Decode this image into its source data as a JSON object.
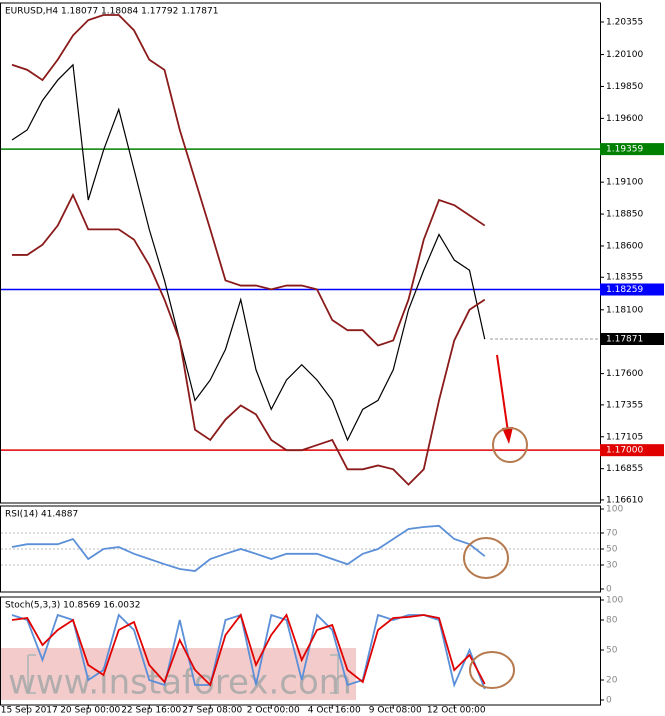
{
  "chart_data": [
    {
      "type": "line",
      "title": "EURUSD,H4  1.18077 1.18084 1.17792 1.17871",
      "categories": [
        null,
        "15 Sep 2017",
        null,
        null,
        null,
        "20 Sep 00:00",
        null,
        null,
        null,
        "22 Sep 16:00",
        null,
        null,
        null,
        "27 Sep 08:00",
        null,
        null,
        null,
        "2 Oct 00:00",
        null,
        null,
        null,
        "4 Oct 16:00",
        null,
        null,
        null,
        "9 Oct 08:00",
        null,
        null,
        null,
        "12 Oct 00:00",
        null,
        null
      ],
      "series": [
        {
          "color": "#000000",
          "values": [
            1.1943,
            1.1951,
            1.1974,
            1.199,
            1.2002,
            1.1896,
            1.1935,
            1.1967,
            1.192,
            1.1873,
            1.1833,
            1.1786,
            1.1739,
            1.1755,
            1.1779,
            1.1818,
            1.1763,
            1.1732,
            1.1755,
            1.1767,
            1.1755,
            1.1739,
            1.1708,
            1.1732,
            1.1739,
            1.1763,
            1.181,
            1.1841,
            1.1869,
            1.1849,
            1.1841,
            1.1787
          ]
        },
        {
          "color": "#8b1a1a",
          "values": [
            1.2002,
            1.1998,
            1.199,
            1.2006,
            1.2025,
            1.2037,
            1.2041,
            1.2041,
            1.2029,
            1.2006,
            1.1998,
            1.1951,
            1.1912,
            1.1873,
            1.1833,
            1.1829,
            1.1829,
            1.1826,
            1.1829,
            1.1829,
            1.1826,
            1.1802,
            1.1794,
            1.1794,
            1.1782,
            1.1786,
            1.1818,
            1.1865,
            1.1896,
            1.1892,
            1.1884,
            1.1876
          ]
        },
        {
          "color": "#8b1a1a",
          "values": [
            1.1853,
            1.1853,
            1.1861,
            1.1876,
            1.19,
            1.1873,
            1.1873,
            1.1873,
            1.1865,
            1.1845,
            1.1818,
            1.1786,
            1.1716,
            1.1708,
            1.1724,
            1.1735,
            1.1728,
            1.1708,
            1.17,
            1.17,
            1.1704,
            1.1708,
            1.1685,
            1.1685,
            1.1688,
            1.1685,
            1.1673,
            1.1685,
            1.1739,
            1.1786,
            1.181,
            1.1818
          ]
        }
      ],
      "ylim": [
        1.16586,
        1.20504
      ],
      "yticks": [
        1.20355,
        {
          "value": 1.201,
          "label": "1.20100"
        },
        {
          "value": 1.1985,
          "label": "1.19850"
        },
        {
          "value": 1.196,
          "label": "1.19600"
        },
        1.19355,
        {
          "value": 1.191,
          "label": "1.19100"
        },
        {
          "value": 1.1885,
          "label": "1.18850"
        },
        {
          "value": 1.186,
          "label": "1.18600"
        },
        1.18355,
        {
          "value": 1.181,
          "label": "1.18100"
        },
        {
          "value": 1.1785,
          "label": "1.17850"
        },
        {
          "value": 1.176,
          "label": "1.17600"
        },
        1.17355,
        1.17105,
        1.16855,
        {
          "value": 1.1661,
          "label": "1.16610"
        }
      ],
      "hlines": [
        {
          "value": 1.19359,
          "label": "1.19359",
          "color": "#008000"
        },
        {
          "value": 1.18259,
          "label": "1.18259",
          "color": "#0000ff"
        },
        {
          "value": 1.17,
          "label": "1.17000",
          "color": "#e00000"
        }
      ],
      "price": {
        "value": 1.17871,
        "label": "1.17871",
        "color": "#000000"
      }
    },
    {
      "type": "line",
      "title": "RSI(14) 41.4887",
      "series": [
        {
          "color": "#5b8fd8",
          "values": [
            52.5,
            56,
            56,
            56,
            62.5,
            37.5,
            50,
            52.5,
            44,
            37.5,
            31,
            25,
            22.5,
            37.5,
            44,
            50,
            44,
            37.5,
            44,
            44,
            44,
            37.5,
            31,
            44,
            50,
            62.5,
            75,
            77.5,
            79,
            62.5,
            56,
            41
          ]
        }
      ],
      "ylim": [
        -3.75,
        103.75
      ],
      "yticks": [
        100,
        70,
        50,
        30,
        0
      ]
    },
    {
      "type": "line",
      "title": "Stoch(5,3,3) 10.8569 16.0032",
      "series": [
        {
          "color": "#5b8fd8",
          "values": [
            85,
            80,
            40,
            85,
            80,
            20,
            30,
            85,
            70,
            20,
            15,
            80,
            15,
            15,
            80,
            85,
            15,
            85,
            80,
            20,
            85,
            70,
            15,
            20,
            85,
            80,
            85,
            85,
            80,
            15,
            50,
            11
          ]
        },
        {
          "color": "#e00000",
          "values": [
            80,
            82,
            55,
            70,
            80,
            35,
            25,
            70,
            78,
            35,
            18,
            60,
            30,
            15,
            65,
            85,
            35,
            65,
            85,
            40,
            70,
            75,
            30,
            18,
            70,
            82,
            83,
            85,
            82,
            30,
            45,
            16
          ]
        }
      ],
      "ylim": [
        -5,
        103
      ],
      "yticks": [
        100,
        80,
        50,
        20,
        0
      ]
    }
  ],
  "watermark": "www.instaforex.com"
}
